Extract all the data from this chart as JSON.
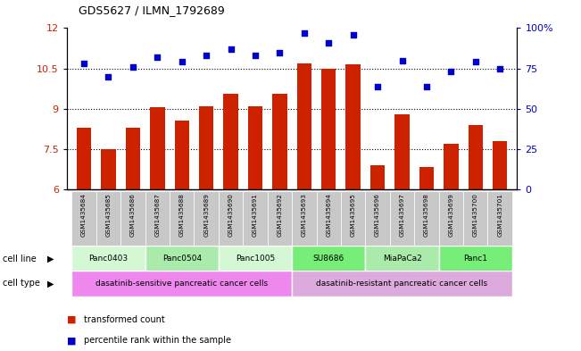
{
  "title": "GDS5627 / ILMN_1792689",
  "samples": [
    "GSM1435684",
    "GSM1435685",
    "GSM1435686",
    "GSM1435687",
    "GSM1435688",
    "GSM1435689",
    "GSM1435690",
    "GSM1435691",
    "GSM1435692",
    "GSM1435693",
    "GSM1435694",
    "GSM1435695",
    "GSM1435696",
    "GSM1435697",
    "GSM1435698",
    "GSM1435699",
    "GSM1435700",
    "GSM1435701"
  ],
  "transformed_count": [
    8.3,
    7.5,
    8.3,
    9.05,
    8.55,
    9.1,
    9.55,
    9.1,
    9.55,
    10.7,
    10.5,
    10.65,
    6.9,
    8.8,
    6.85,
    7.7,
    8.4,
    7.8
  ],
  "percentile_rank": [
    78,
    70,
    76,
    82,
    79,
    83,
    87,
    83,
    85,
    97,
    91,
    96,
    64,
    80,
    64,
    73,
    79,
    75
  ],
  "ylim_left": [
    6,
    12
  ],
  "ylim_right": [
    0,
    100
  ],
  "yticks_left": [
    6,
    7.5,
    9,
    10.5,
    12
  ],
  "yticks_right": [
    0,
    25,
    50,
    75,
    100
  ],
  "bar_color": "#cc2200",
  "dot_color": "#0000cc",
  "cell_lines": [
    {
      "label": "Panc0403",
      "start": 0,
      "end": 3,
      "color": "#d4f7d4"
    },
    {
      "label": "Panc0504",
      "start": 3,
      "end": 6,
      "color": "#aaeaaa"
    },
    {
      "label": "Panc1005",
      "start": 6,
      "end": 9,
      "color": "#d4f7d4"
    },
    {
      "label": "SU8686",
      "start": 9,
      "end": 12,
      "color": "#77ee77"
    },
    {
      "label": "MiaPaCa2",
      "start": 12,
      "end": 15,
      "color": "#aaeaaa"
    },
    {
      "label": "Panc1",
      "start": 15,
      "end": 18,
      "color": "#77ee77"
    }
  ],
  "cell_types": [
    {
      "label": "dasatinib-sensitive pancreatic cancer cells",
      "start": 0,
      "end": 9,
      "color": "#ee88ee"
    },
    {
      "label": "dasatinib-resistant pancreatic cancer cells",
      "start": 9,
      "end": 18,
      "color": "#ddaadd"
    }
  ],
  "legend_bar_label": "transformed count",
  "legend_dot_label": "percentile rank within the sample",
  "bar_label_color": "#cc2200",
  "right_axis_color": "#0000cc",
  "sample_bg_color": "#c8c8c8"
}
